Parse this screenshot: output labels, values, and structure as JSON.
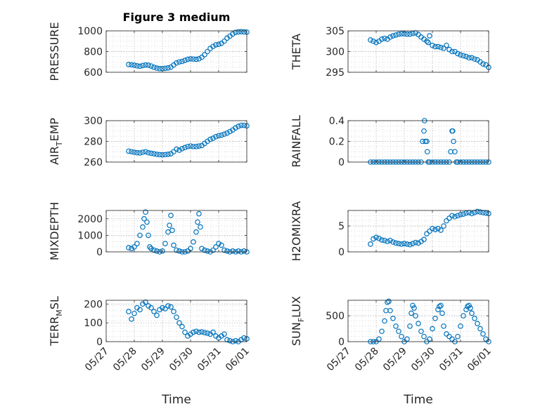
{
  "figure": {
    "title": "Figure 3 medium",
    "xlabel": "Time"
  },
  "style": {
    "marker_color": "#0072BD",
    "grid_color": "#b0b0b0",
    "axis_color": "#262626"
  },
  "chart_data": [
    {
      "type": "scatter",
      "name": "pressure",
      "ylabel": "PRESSURE",
      "ylim": [
        600,
        1000
      ],
      "yticks": [
        600,
        800,
        1000
      ],
      "ytick_labels": [
        "600",
        "800",
        "1000"
      ],
      "x_ticks": [
        "05/27",
        "05/28",
        "05/29",
        "05/30",
        "05/31",
        "06/01"
      ],
      "x_tick_labels_shown": false,
      "x": [
        0.8,
        0.9,
        1.0,
        1.1,
        1.2,
        1.3,
        1.4,
        1.5,
        1.6,
        1.7,
        1.8,
        1.9,
        2.0,
        2.1,
        2.2,
        2.3,
        2.4,
        2.5,
        2.6,
        2.7,
        2.8,
        2.9,
        3.0,
        3.1,
        3.2,
        3.3,
        3.4,
        3.5,
        3.6,
        3.7,
        3.8,
        3.9,
        4.0,
        4.1,
        4.2,
        4.3,
        4.4,
        4.5,
        4.6,
        4.7,
        4.8,
        4.9,
        5.0
      ],
      "y": [
        675,
        672,
        668,
        662,
        658,
        665,
        670,
        668,
        660,
        648,
        640,
        635,
        635,
        638,
        642,
        650,
        670,
        690,
        700,
        705,
        715,
        725,
        730,
        728,
        725,
        730,
        745,
        770,
        800,
        830,
        850,
        865,
        870,
        880,
        900,
        930,
        950,
        970,
        985,
        990,
        992,
        990,
        988
      ]
    },
    {
      "type": "scatter",
      "name": "theta",
      "ylabel": "THETA",
      "ylim": [
        295,
        305
      ],
      "yticks": [
        295,
        300,
        305
      ],
      "ytick_labels": [
        "295",
        "300",
        "305"
      ],
      "x_ticks": [
        "05/27",
        "05/28",
        "05/29",
        "05/30",
        "05/31",
        "06/01"
      ],
      "x_tick_labels_shown": false,
      "x": [
        0.8,
        0.9,
        1.0,
        1.1,
        1.2,
        1.3,
        1.4,
        1.5,
        1.6,
        1.7,
        1.8,
        1.9,
        2.0,
        2.1,
        2.2,
        2.3,
        2.4,
        2.5,
        2.6,
        2.7,
        2.8,
        2.85,
        2.9,
        3.0,
        3.1,
        3.2,
        3.3,
        3.4,
        3.5,
        3.6,
        3.7,
        3.8,
        3.9,
        4.0,
        4.1,
        4.2,
        4.3,
        4.4,
        4.5,
        4.6,
        4.7,
        4.8,
        4.9,
        5.0
      ],
      "y": [
        302.8,
        302.5,
        302.2,
        302.5,
        303.0,
        303.2,
        303.0,
        303.5,
        303.8,
        304.0,
        304.2,
        304.3,
        304.3,
        304.2,
        304.2,
        304.4,
        304.5,
        304.1,
        303.5,
        303.0,
        302.5,
        302.2,
        303.8,
        301.5,
        301.2,
        301.2,
        301.0,
        300.8,
        301.5,
        300.5,
        300.0,
        300.0,
        299.5,
        299.2,
        299.0,
        298.8,
        298.5,
        298.5,
        298.2,
        298.0,
        297.5,
        297.0,
        296.8,
        296.2
      ]
    },
    {
      "type": "scatter",
      "name": "air_temp",
      "ylabel": "AIR_TEMP",
      "ylabel_parts": [
        "AIR",
        "T",
        "EMP"
      ],
      "ylim": [
        260,
        300
      ],
      "yticks": [
        260,
        280,
        300
      ],
      "ytick_labels": [
        "260",
        "280",
        "300"
      ],
      "x_ticks": [
        "05/27",
        "05/28",
        "05/29",
        "05/30",
        "05/31",
        "06/01"
      ],
      "x_tick_labels_shown": false,
      "x": [
        0.8,
        0.9,
        1.0,
        1.1,
        1.2,
        1.3,
        1.4,
        1.5,
        1.6,
        1.7,
        1.8,
        1.9,
        2.0,
        2.1,
        2.2,
        2.3,
        2.4,
        2.5,
        2.6,
        2.7,
        2.8,
        2.9,
        3.0,
        3.1,
        3.2,
        3.3,
        3.4,
        3.5,
        3.6,
        3.7,
        3.8,
        3.9,
        4.0,
        4.1,
        4.2,
        4.3,
        4.4,
        4.5,
        4.6,
        4.7,
        4.8,
        4.9,
        5.0
      ],
      "y": [
        270.5,
        270.0,
        269.5,
        269.0,
        268.8,
        269.5,
        270.0,
        269.0,
        268.5,
        268.0,
        267.5,
        267.2,
        267.0,
        267.2,
        267.5,
        268.0,
        270.0,
        272.5,
        271.5,
        273.0,
        274.0,
        275.0,
        275.5,
        275.0,
        275.0,
        275.5,
        276.0,
        278.0,
        280.0,
        282.0,
        283.0,
        284.5,
        285.5,
        286.0,
        287.0,
        288.0,
        289.5,
        291.0,
        293.0,
        294.5,
        295.5,
        295.5,
        295.0
      ]
    },
    {
      "type": "scatter",
      "name": "rainfall",
      "ylabel": "RAINFALL",
      "ylim": [
        0,
        0.4
      ],
      "yticks": [
        0,
        0.2,
        0.4
      ],
      "ytick_labels": [
        "0",
        "0.2",
        "0.4"
      ],
      "x_ticks": [
        "05/27",
        "05/28",
        "05/29",
        "05/30",
        "05/31",
        "06/01"
      ],
      "x_tick_labels_shown": false,
      "x": [
        0.8,
        0.9,
        1.0,
        1.1,
        1.2,
        1.3,
        1.4,
        1.5,
        1.6,
        1.7,
        1.8,
        1.9,
        2.0,
        2.1,
        2.2,
        2.3,
        2.4,
        2.5,
        2.6,
        2.65,
        2.7,
        2.72,
        2.75,
        2.8,
        2.82,
        2.85,
        2.9,
        3.0,
        3.1,
        3.2,
        3.3,
        3.4,
        3.5,
        3.6,
        3.65,
        3.7,
        3.72,
        3.75,
        3.8,
        3.85,
        3.9,
        4.0,
        4.1,
        4.2,
        4.3,
        4.4,
        4.5,
        4.6,
        4.7,
        4.8,
        4.9,
        5.0
      ],
      "y": [
        0,
        0,
        0,
        0,
        0,
        0,
        0,
        0,
        0,
        0,
        0,
        0,
        0,
        0,
        0,
        0,
        0,
        0,
        0,
        0.2,
        0.3,
        0.4,
        0.2,
        0.2,
        0.1,
        0,
        0,
        0,
        0,
        0,
        0,
        0,
        0,
        0,
        0.1,
        0.3,
        0.3,
        0.2,
        0.1,
        0,
        0,
        0,
        0,
        0,
        0,
        0,
        0,
        0,
        0,
        0,
        0,
        0
      ]
    },
    {
      "type": "scatter",
      "name": "mixdepth",
      "ylabel": "MIXDEPTH",
      "ylim": [
        0,
        2500
      ],
      "yticks": [
        0,
        1000,
        2000
      ],
      "ytick_labels": [
        "0",
        "1000",
        "2000"
      ],
      "x_ticks": [
        "05/27",
        "05/28",
        "05/29",
        "05/30",
        "05/31",
        "06/01"
      ],
      "x_tick_labels_shown": false,
      "x": [
        0.8,
        0.9,
        1.0,
        1.1,
        1.2,
        1.3,
        1.35,
        1.4,
        1.45,
        1.5,
        1.55,
        1.6,
        1.7,
        1.8,
        1.9,
        2.0,
        2.1,
        2.2,
        2.25,
        2.3,
        2.35,
        2.4,
        2.5,
        2.6,
        2.7,
        2.8,
        2.9,
        3.0,
        3.1,
        3.2,
        3.25,
        3.3,
        3.35,
        3.4,
        3.5,
        3.6,
        3.7,
        3.8,
        3.9,
        4.0,
        4.1,
        4.2,
        4.3,
        4.4,
        4.5,
        4.6,
        4.7,
        4.8,
        4.9,
        5.0
      ],
      "y": [
        250,
        200,
        300,
        500,
        1000,
        1500,
        2000,
        2400,
        1800,
        1000,
        300,
        200,
        100,
        50,
        0,
        50,
        500,
        1200,
        1600,
        2200,
        1300,
        400,
        100,
        50,
        0,
        0,
        50,
        200,
        600,
        1200,
        1800,
        2300,
        1500,
        200,
        100,
        50,
        0,
        100,
        300,
        500,
        400,
        100,
        50,
        0,
        50,
        0,
        50,
        0,
        50,
        0
      ]
    },
    {
      "type": "scatter",
      "name": "h2omixra",
      "ylabel": "H2OMIXRA",
      "ylim": [
        0,
        8
      ],
      "yticks": [
        0,
        5
      ],
      "ytick_labels": [
        "0",
        "5"
      ],
      "x_ticks": [
        "05/27",
        "05/28",
        "05/29",
        "05/30",
        "05/31",
        "06/01"
      ],
      "x_tick_labels_shown": false,
      "x": [
        0.8,
        0.9,
        1.0,
        1.1,
        1.2,
        1.3,
        1.4,
        1.5,
        1.6,
        1.7,
        1.8,
        1.9,
        2.0,
        2.1,
        2.2,
        2.3,
        2.4,
        2.5,
        2.6,
        2.7,
        2.8,
        2.9,
        3.0,
        3.1,
        3.2,
        3.3,
        3.4,
        3.5,
        3.6,
        3.7,
        3.8,
        3.9,
        4.0,
        4.1,
        4.2,
        4.3,
        4.4,
        4.5,
        4.6,
        4.7,
        4.8,
        4.9,
        5.0
      ],
      "y": [
        1.5,
        2.5,
        2.8,
        2.6,
        2.3,
        2.2,
        2.0,
        2.2,
        1.9,
        1.7,
        1.6,
        1.5,
        1.6,
        1.5,
        1.4,
        1.6,
        1.8,
        1.7,
        2.0,
        2.4,
        3.5,
        4.0,
        4.5,
        4.3,
        4.5,
        4.2,
        5.0,
        6.0,
        6.5,
        7.0,
        6.8,
        7.0,
        7.2,
        7.3,
        7.5,
        7.6,
        7.4,
        7.6,
        7.8,
        7.7,
        7.6,
        7.5,
        7.4
      ]
    },
    {
      "type": "scatter",
      "name": "terr_msl",
      "ylabel": "TERR_MSL",
      "ylabel_parts": [
        "TERR",
        "M",
        "SL"
      ],
      "ylim": [
        0,
        220
      ],
      "yticks": [
        0,
        100,
        200
      ],
      "ytick_labels": [
        "0",
        "100",
        "200"
      ],
      "x_ticks": [
        "05/27",
        "05/28",
        "05/29",
        "05/30",
        "05/31",
        "06/01"
      ],
      "x_tick_labels_shown": true,
      "x": [
        0.8,
        0.9,
        1.0,
        1.1,
        1.2,
        1.3,
        1.4,
        1.5,
        1.6,
        1.7,
        1.8,
        1.9,
        2.0,
        2.1,
        2.2,
        2.3,
        2.4,
        2.5,
        2.6,
        2.7,
        2.8,
        2.9,
        3.0,
        3.1,
        3.2,
        3.3,
        3.4,
        3.5,
        3.6,
        3.7,
        3.8,
        3.9,
        4.0,
        4.1,
        4.2,
        4.3,
        4.4,
        4.5,
        4.6,
        4.7,
        4.8,
        4.9,
        5.0
      ],
      "y": [
        160,
        120,
        150,
        180,
        170,
        200,
        210,
        190,
        180,
        160,
        140,
        170,
        180,
        175,
        190,
        185,
        160,
        130,
        100,
        80,
        50,
        30,
        40,
        50,
        55,
        50,
        52,
        48,
        45,
        40,
        50,
        30,
        20,
        30,
        40,
        10,
        5,
        0,
        5,
        0,
        10,
        20,
        15
      ]
    },
    {
      "type": "scatter",
      "name": "sun_flux",
      "ylabel": "SUN_FLUX",
      "ylabel_parts": [
        "SUN",
        "F",
        "LUX"
      ],
      "ylim": [
        0,
        800
      ],
      "yticks": [
        0,
        500
      ],
      "ytick_labels": [
        "0",
        "500"
      ],
      "x_ticks": [
        "05/27",
        "05/28",
        "05/29",
        "05/30",
        "05/31",
        "06/01"
      ],
      "x_tick_labels_shown": true,
      "x": [
        0.8,
        0.9,
        1.0,
        1.1,
        1.2,
        1.3,
        1.35,
        1.4,
        1.45,
        1.5,
        1.6,
        1.7,
        1.8,
        1.9,
        2.0,
        2.1,
        2.2,
        2.25,
        2.3,
        2.35,
        2.4,
        2.5,
        2.6,
        2.7,
        2.8,
        2.9,
        3.0,
        3.1,
        3.2,
        3.25,
        3.3,
        3.35,
        3.4,
        3.5,
        3.6,
        3.7,
        3.8,
        3.9,
        4.0,
        4.1,
        4.2,
        4.25,
        4.3,
        4.35,
        4.4,
        4.5,
        4.6,
        4.7,
        4.8,
        4.9,
        5.0
      ],
      "y": [
        0,
        0,
        0,
        50,
        200,
        400,
        600,
        760,
        780,
        600,
        450,
        300,
        200,
        100,
        0,
        50,
        300,
        550,
        700,
        650,
        500,
        350,
        200,
        100,
        0,
        50,
        250,
        450,
        620,
        680,
        700,
        550,
        300,
        150,
        100,
        50,
        0,
        100,
        300,
        500,
        620,
        680,
        700,
        650,
        550,
        450,
        350,
        250,
        150,
        50,
        0
      ]
    }
  ]
}
